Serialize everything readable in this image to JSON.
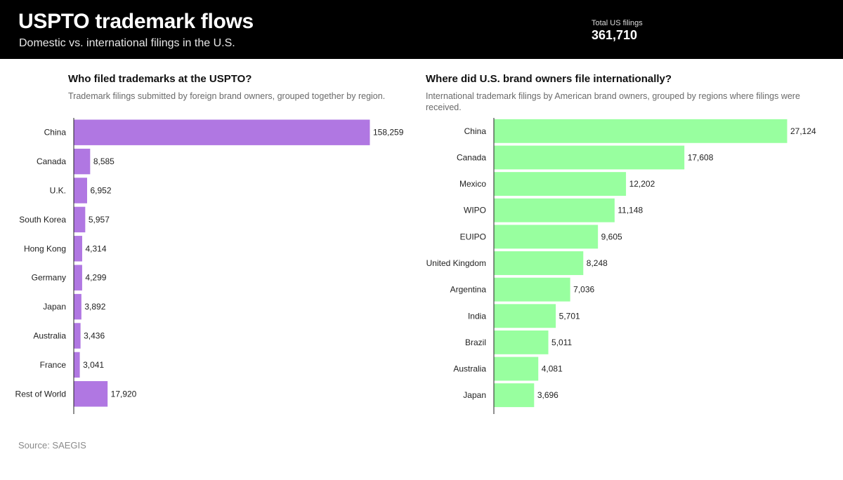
{
  "header": {
    "title": "USPTO trademark flows",
    "subtitle": "Domestic vs. international filings in the U.S.",
    "kpi_label": "Total US filings",
    "kpi_value": "361,710"
  },
  "left_panel": {
    "title": "Who filed trademarks at the USPTO?",
    "subtitle": "Trademark filings submitted by foreign brand owners, grouped together by region."
  },
  "right_panel": {
    "title": "Where did U.S. brand owners file internationally?",
    "subtitle": "International trademark filings by American brand owners, grouped by regions where filings were received."
  },
  "source": "Source: SAEGIS",
  "chart_data": [
    {
      "type": "bar",
      "orientation": "horizontal",
      "color": "#b077e2",
      "categories": [
        "China",
        "Canada",
        "U.K.",
        "South Korea",
        "Hong Kong",
        "Germany",
        "Japan",
        "Australia",
        "France",
        "Rest of World"
      ],
      "values": [
        158259,
        8585,
        6952,
        5957,
        4314,
        4299,
        3892,
        3436,
        3041,
        17920
      ],
      "labels": [
        "158,259",
        "8,585",
        "6,952",
        "5,957",
        "4,314",
        "4,299",
        "3,892",
        "3,436",
        "3,041",
        "17,920"
      ]
    },
    {
      "type": "bar",
      "orientation": "horizontal",
      "color": "#98ff9f",
      "categories": [
        "China",
        "Canada",
        "Mexico",
        "WIPO",
        "EUIPO",
        "United Kingdom",
        "Argentina",
        "India",
        "Brazil",
        "Australia",
        "Japan"
      ],
      "values": [
        27124,
        17608,
        12202,
        11148,
        9605,
        8248,
        7036,
        5701,
        5011,
        4081,
        3696
      ],
      "labels": [
        "27,124",
        "17,608",
        "12,202",
        "11,148",
        "9,605",
        "8,248",
        "7,036",
        "5,701",
        "5,011",
        "4,081",
        "3,696"
      ]
    }
  ]
}
